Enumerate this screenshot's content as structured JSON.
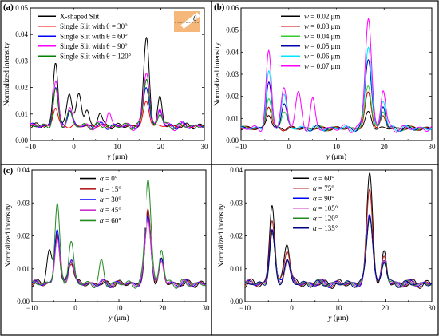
{
  "chart_data": [
    {
      "id": "a",
      "panel_label": "(a)",
      "type": "line",
      "xlabel_var": "y",
      "xlabel_unit": " (μm)",
      "ylabel": "Normalized intensity",
      "xlim": [
        -10,
        30
      ],
      "ylim": [
        0,
        0.05
      ],
      "xticks": [
        -10,
        0,
        10,
        20,
        30
      ],
      "yticks": [
        0,
        0.01,
        0.02,
        0.03,
        0.04,
        0.05
      ],
      "ytick_labels": [
        "0.00",
        "0.01",
        "0.02",
        "0.03",
        "0.04",
        "0.05"
      ],
      "legend_position": "top-left",
      "inset": {
        "symbol": "θ",
        "fill": "#f5b87a"
      },
      "series": [
        {
          "name": "X-shaped Slit",
          "color": "#000000",
          "profile": {
            "base": 0.0055,
            "amp": 0.0012,
            "phase": 0.0,
            "peaks": [
              [
                -4.2,
                0.0295,
                0.55
              ],
              [
                -1,
                0.0185,
                0.6
              ],
              [
                1.2,
                0.017,
                0.6
              ],
              [
                3,
                0.0115,
                0.5
              ],
              [
                6,
                0.0105,
                0.5
              ],
              [
                16.7,
                0.038,
                0.65
              ],
              [
                19.8,
                0.016,
                0.5
              ]
            ]
          }
        },
        {
          "name": "Single Slit with θ = 30°",
          "color": "#ff0000",
          "profile": {
            "base": 0.0055,
            "amp": 0.0008,
            "phase": 0.8,
            "peaks": [
              [
                -4.2,
                0.0125,
                0.55
              ],
              [
                16.7,
                0.0145,
                0.65
              ]
            ]
          }
        },
        {
          "name": "Single Slit with θ = 60°",
          "color": "#0000ff",
          "profile": {
            "base": 0.0055,
            "amp": 0.0015,
            "phase": 1.6,
            "peaks": [
              [
                -4.2,
                0.0205,
                0.55
              ],
              [
                -1,
                0.0115,
                0.6
              ],
              [
                16.7,
                0.0205,
                0.65
              ],
              [
                19.8,
                0.0115,
                0.5
              ]
            ]
          }
        },
        {
          "name": "Single Slit with θ = 90°",
          "color": "#ff00ff",
          "profile": {
            "base": 0.0055,
            "amp": 0.0018,
            "phase": 2.4,
            "peaks": [
              [
                -4.2,
                0.022,
                0.55
              ],
              [
                -1,
                0.012,
                0.6
              ],
              [
                8,
                0.011,
                0.5
              ],
              [
                16.7,
                0.0265,
                0.65
              ],
              [
                19.8,
                0.0125,
                0.5
              ]
            ]
          }
        },
        {
          "name": "Single Slit with θ = 120°",
          "color": "#008000",
          "profile": {
            "base": 0.0055,
            "amp": 0.0014,
            "phase": 3.2,
            "peaks": [
              [
                -4.2,
                0.0185,
                0.55
              ],
              [
                -1,
                0.011,
                0.6
              ],
              [
                16.7,
                0.0235,
                0.65
              ],
              [
                19.8,
                0.0105,
                0.5
              ]
            ]
          }
        }
      ]
    },
    {
      "id": "b",
      "panel_label": "(b)",
      "type": "line",
      "xlabel_var": "y",
      "xlabel_unit": " (μm)",
      "ylabel": "Normalized intensity",
      "xlim": [
        -10,
        30
      ],
      "ylim": [
        0,
        0.06
      ],
      "xticks": [
        -10,
        0,
        10,
        20,
        30
      ],
      "yticks": [
        0,
        0.01,
        0.02,
        0.03,
        0.04,
        0.05,
        0.06
      ],
      "ytick_labels": [
        "0.00",
        "0.01",
        "0.02",
        "0.03",
        "0.04",
        "0.05",
        "0.06"
      ],
      "legend_position": "top-center",
      "series": [
        {
          "name": "w = 0.02 μm",
          "var": "w",
          "value": " = 0.02 μm",
          "color": "#000000",
          "profile": {
            "base": 0.0055,
            "amp": 0.0009,
            "phase": 0.0,
            "peaks": [
              [
                -4.2,
                0.0115,
                0.55
              ],
              [
                16.7,
                0.0125,
                0.65
              ]
            ]
          }
        },
        {
          "name": "w = 0.03 μm",
          "var": "w",
          "value": " = 0.03 μm",
          "color": "#cc0000",
          "profile": {
            "base": 0.0055,
            "amp": 0.0011,
            "phase": 0.7,
            "peaks": [
              [
                -4.2,
                0.0155,
                0.55
              ],
              [
                16.7,
                0.0215,
                0.65
              ],
              [
                19.8,
                0.011,
                0.5
              ]
            ]
          }
        },
        {
          "name": "w = 0.04 μm",
          "var": "w",
          "value": " = 0.04 μm",
          "color": "#33cc33",
          "profile": {
            "base": 0.0055,
            "amp": 0.0013,
            "phase": 1.4,
            "peaks": [
              [
                -4.2,
                0.0195,
                0.55
              ],
              [
                -1,
                0.0135,
                0.6
              ],
              [
                16.7,
                0.025,
                0.65
              ],
              [
                19.8,
                0.013,
                0.5
              ]
            ]
          }
        },
        {
          "name": "w = 0.05 μm",
          "var": "w",
          "value": " = 0.05 μm",
          "color": "#0000aa",
          "profile": {
            "base": 0.0055,
            "amp": 0.0015,
            "phase": 2.1,
            "peaks": [
              [
                -4.2,
                0.0265,
                0.55
              ],
              [
                -1,
                0.0165,
                0.6
              ],
              [
                16.7,
                0.0375,
                0.65
              ],
              [
                19.8,
                0.0155,
                0.5
              ]
            ]
          }
        },
        {
          "name": "w = 0.06 μm",
          "var": "w",
          "value": " = 0.06 μm",
          "color": "#00e5ff",
          "profile": {
            "base": 0.0055,
            "amp": 0.0017,
            "phase": 2.8,
            "peaks": [
              [
                -4.2,
                0.0305,
                0.55
              ],
              [
                -1,
                0.0205,
                0.6
              ],
              [
                16.7,
                0.043,
                0.65
              ],
              [
                19.8,
                0.0185,
                0.5
              ]
            ]
          }
        },
        {
          "name": "w = 0.07 μm",
          "var": "w",
          "value": " = 0.07 μm",
          "color": "#ff00ff",
          "profile": {
            "base": 0.0055,
            "amp": 0.002,
            "phase": 3.5,
            "peaks": [
              [
                -4.2,
                0.039,
                0.55
              ],
              [
                -1,
                0.0235,
                0.6
              ],
              [
                2,
                0.021,
                0.6
              ],
              [
                5,
                0.018,
                0.5
              ],
              [
                16.7,
                0.0555,
                0.65
              ],
              [
                19.8,
                0.0235,
                0.5
              ]
            ]
          }
        }
      ]
    },
    {
      "id": "c",
      "panel_label": "(c)",
      "type": "line",
      "xlabel_var": "y",
      "xlabel_unit": " (μm)",
      "ylabel": "Normalized intensity",
      "xlim": [
        -10,
        30
      ],
      "ylim": [
        0,
        0.04
      ],
      "xticks": [
        -10,
        0,
        10,
        20,
        30
      ],
      "yticks": [
        0,
        0.01,
        0.02,
        0.03,
        0.04
      ],
      "ytick_labels": [
        "0.00",
        "0.01",
        "0.02",
        "0.03",
        "0.04"
      ],
      "legend_position": "top-left",
      "series": [
        {
          "name": "α = 0°",
          "var": "α",
          "value": " = 0°",
          "color": "#000000",
          "profile": {
            "base": 0.0055,
            "amp": 0.0012,
            "phase": 0.0,
            "peaks": [
              [
                -6,
                0.0155,
                0.6
              ],
              [
                -4.2,
                0.0205,
                0.55
              ],
              [
                -1,
                0.013,
                0.6
              ],
              [
                16.7,
                0.0265,
                0.65
              ],
              [
                19.8,
                0.0125,
                0.5
              ]
            ]
          }
        },
        {
          "name": "α = 15°",
          "var": "α",
          "value": " = 15°",
          "color": "#b22222",
          "profile": {
            "base": 0.0055,
            "amp": 0.0012,
            "phase": 0.6,
            "peaks": [
              [
                -4.2,
                0.021,
                0.55
              ],
              [
                -1,
                0.0125,
                0.6
              ],
              [
                16.7,
                0.0275,
                0.65
              ],
              [
                19.8,
                0.012,
                0.5
              ]
            ]
          }
        },
        {
          "name": "α = 30°",
          "var": "α",
          "value": " = 30°",
          "color": "#0000ff",
          "profile": {
            "base": 0.0055,
            "amp": 0.0013,
            "phase": 1.2,
            "peaks": [
              [
                -4.2,
                0.0225,
                0.55
              ],
              [
                -1,
                0.0135,
                0.6
              ],
              [
                16.7,
                0.026,
                0.65
              ],
              [
                19.8,
                0.013,
                0.5
              ]
            ]
          }
        },
        {
          "name": "α = 45°",
          "var": "α",
          "value": " = 45°",
          "color": "#cc33cc",
          "profile": {
            "base": 0.0055,
            "amp": 0.0013,
            "phase": 1.8,
            "peaks": [
              [
                -4.2,
                0.0195,
                0.55
              ],
              [
                -1,
                0.0125,
                0.6
              ],
              [
                16.7,
                0.0255,
                0.65
              ],
              [
                19.8,
                0.0125,
                0.5
              ]
            ]
          }
        },
        {
          "name": "α = 60°",
          "var": "α",
          "value": " = 60°",
          "color": "#228b22",
          "profile": {
            "base": 0.0055,
            "amp": 0.0015,
            "phase": 2.4,
            "peaks": [
              [
                -4.2,
                0.0295,
                0.55
              ],
              [
                -1,
                0.018,
                0.6
              ],
              [
                6,
                0.0115,
                0.5
              ],
              [
                16.7,
                0.038,
                0.65
              ],
              [
                19.8,
                0.016,
                0.5
              ]
            ]
          }
        }
      ]
    },
    {
      "id": "d",
      "panel_label": "",
      "type": "line",
      "xlabel_var": "y",
      "xlabel_unit": " (μm)",
      "ylabel": "Normalized intensity",
      "xlim": [
        -10,
        30
      ],
      "ylim": [
        0,
        0.04
      ],
      "xticks": [
        -10,
        0,
        10,
        20,
        30
      ],
      "yticks": [
        0,
        0.01,
        0.02,
        0.03,
        0.04
      ],
      "ytick_labels": [
        "0.00",
        "0.01",
        "0.02",
        "0.03",
        "0.04"
      ],
      "legend_position": "top-left",
      "series": [
        {
          "name": "α = 60°",
          "var": "α",
          "value": " = 60°",
          "color": "#000000",
          "profile": {
            "base": 0.0055,
            "amp": 0.0015,
            "phase": 0.0,
            "peaks": [
              [
                -4.2,
                0.0295,
                0.55
              ],
              [
                -1,
                0.0185,
                0.6
              ],
              [
                16.7,
                0.038,
                0.65
              ],
              [
                19.8,
                0.0145,
                0.5
              ]
            ]
          }
        },
        {
          "name": "α = 75°",
          "var": "α",
          "value": " = 75°",
          "color": "#b22222",
          "profile": {
            "base": 0.0055,
            "amp": 0.0013,
            "phase": 0.6,
            "peaks": [
              [
                -4.2,
                0.025,
                0.55
              ],
              [
                -1,
                0.0165,
                0.6
              ],
              [
                16.7,
                0.0335,
                0.65
              ],
              [
                19.8,
                0.0135,
                0.5
              ]
            ]
          }
        },
        {
          "name": "α = 90°",
          "var": "α",
          "value": " = 90°",
          "color": "#0000ff",
          "profile": {
            "base": 0.0055,
            "amp": 0.0013,
            "phase": 1.2,
            "peaks": [
              [
                -4.2,
                0.0225,
                0.55
              ],
              [
                -1,
                0.0135,
                0.6
              ],
              [
                16.7,
                0.0265,
                0.65
              ],
              [
                19.8,
                0.0125,
                0.5
              ]
            ]
          }
        },
        {
          "name": "α = 105°",
          "var": "α",
          "value": " = 105°",
          "color": "#cc33cc",
          "profile": {
            "base": 0.0055,
            "amp": 0.0012,
            "phase": 1.8,
            "peaks": [
              [
                -4.2,
                0.021,
                0.55
              ],
              [
                -1,
                0.0125,
                0.6
              ],
              [
                16.7,
                0.0265,
                0.65
              ],
              [
                19.8,
                0.0125,
                0.5
              ]
            ]
          }
        },
        {
          "name": "α = 120°",
          "var": "α",
          "value": " = 120°",
          "color": "#228b22",
          "profile": {
            "base": 0.0055,
            "amp": 0.0012,
            "phase": 2.4,
            "peaks": [
              [
                -4.2,
                0.0205,
                0.55
              ],
              [
                -1,
                0.0125,
                0.6
              ],
              [
                16.7,
                0.026,
                0.65
              ],
              [
                19.8,
                0.012,
                0.5
              ]
            ]
          }
        },
        {
          "name": "α = 135°",
          "var": "α",
          "value": " = 135°",
          "color": "#000080",
          "profile": {
            "base": 0.0055,
            "amp": 0.0012,
            "phase": 3.0,
            "peaks": [
              [
                -4.2,
                0.0205,
                0.55
              ],
              [
                -1,
                0.0125,
                0.6
              ],
              [
                16.7,
                0.0265,
                0.65
              ],
              [
                19.8,
                0.0125,
                0.5
              ]
            ]
          }
        }
      ]
    }
  ]
}
